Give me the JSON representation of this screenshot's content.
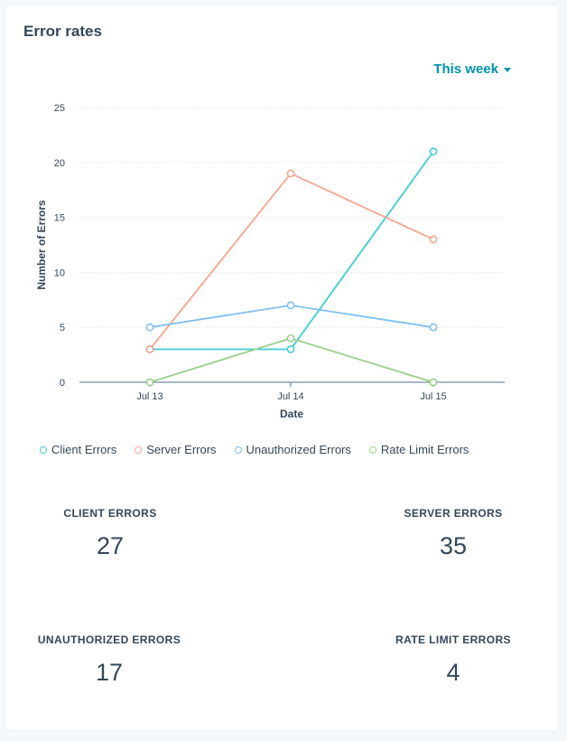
{
  "header": {
    "title": "Error rates",
    "range_label": "This week"
  },
  "colors": {
    "client": "#3fcdd6",
    "server": "#f6a58f",
    "unauthorized": "#7fc0f1",
    "rate_limit": "#99d18c",
    "grid": "#e2e8ee",
    "axis": "#516f90"
  },
  "chart_data": {
    "type": "line",
    "xlabel": "Date",
    "ylabel": "Number of Errors",
    "x": [
      "Jul 13",
      "Jul 14",
      "Jul 15"
    ],
    "ylim": [
      0,
      25
    ],
    "yticks": [
      0,
      5,
      10,
      15,
      20,
      25
    ],
    "grid": true,
    "legend_position": "bottom-left",
    "series": [
      {
        "name": "Client Errors",
        "values": [
          3,
          3,
          21
        ],
        "color": "#3fcdd6"
      },
      {
        "name": "Server Errors",
        "values": [
          3,
          19,
          13
        ],
        "color": "#f6a58f"
      },
      {
        "name": "Unauthorized Errors",
        "values": [
          5,
          7,
          5
        ],
        "color": "#7fc0f1"
      },
      {
        "name": "Rate Limit Errors",
        "values": [
          0,
          4,
          0
        ],
        "color": "#99d18c"
      }
    ]
  },
  "stats": [
    {
      "label": "CLIENT ERRORS",
      "value": "27"
    },
    {
      "label": "SERVER ERRORS",
      "value": "35"
    },
    {
      "label": "UNAUTHORIZED ERRORS",
      "value": "17"
    },
    {
      "label": "RATE LIMIT ERRORS",
      "value": "4"
    }
  ]
}
